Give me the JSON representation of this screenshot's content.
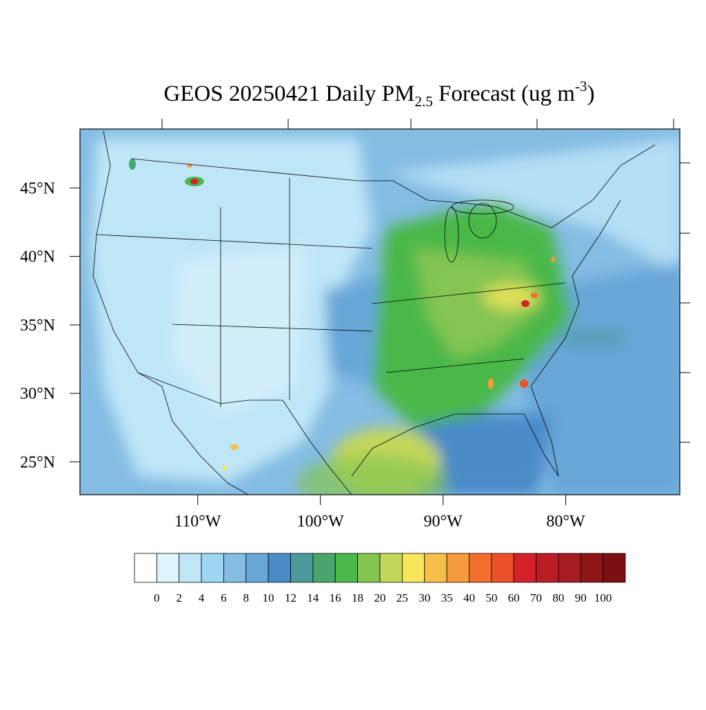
{
  "chart_data": {
    "type": "map",
    "title": {
      "main": "GEOS 20250421 Daily PM",
      "subscript": "2.5",
      "rest": " Forecast (ug m",
      "superscript": "-3",
      "end": ")"
    },
    "xlim": [
      -119.6,
      -70.7
    ],
    "ylim": [
      22.6,
      49.3
    ],
    "xticks": [
      {
        "value": -110,
        "label": "110°W"
      },
      {
        "value": -100,
        "label": "100°W"
      },
      {
        "value": -90,
        "label": "90°W"
      },
      {
        "value": -80,
        "label": "80°W"
      }
    ],
    "yticks": [
      {
        "value": 45,
        "label": "45°N"
      },
      {
        "value": 40,
        "label": "40°N"
      },
      {
        "value": 35,
        "label": "35°N"
      },
      {
        "value": 30,
        "label": "30°N"
      },
      {
        "value": 25,
        "label": "25°N"
      }
    ],
    "colorbar": {
      "levels": [
        0,
        2,
        4,
        6,
        8,
        10,
        12,
        14,
        16,
        18,
        20,
        25,
        30,
        35,
        40,
        50,
        60,
        70,
        80,
        90,
        100
      ],
      "colors": [
        "#ffffff",
        "#dff3fb",
        "#bfe6f7",
        "#9dd6f3",
        "#84bce3",
        "#67a6d8",
        "#4a8ac7",
        "#4b9a9c",
        "#48a66c",
        "#4ab84a",
        "#84c552",
        "#c4d65a",
        "#f7e65a",
        "#f6bf4a",
        "#f59b3c",
        "#f26f2f",
        "#ec5029",
        "#d42229",
        "#bb1d26",
        "#a71b22",
        "#8e1518",
        "#7a1014"
      ]
    }
  }
}
